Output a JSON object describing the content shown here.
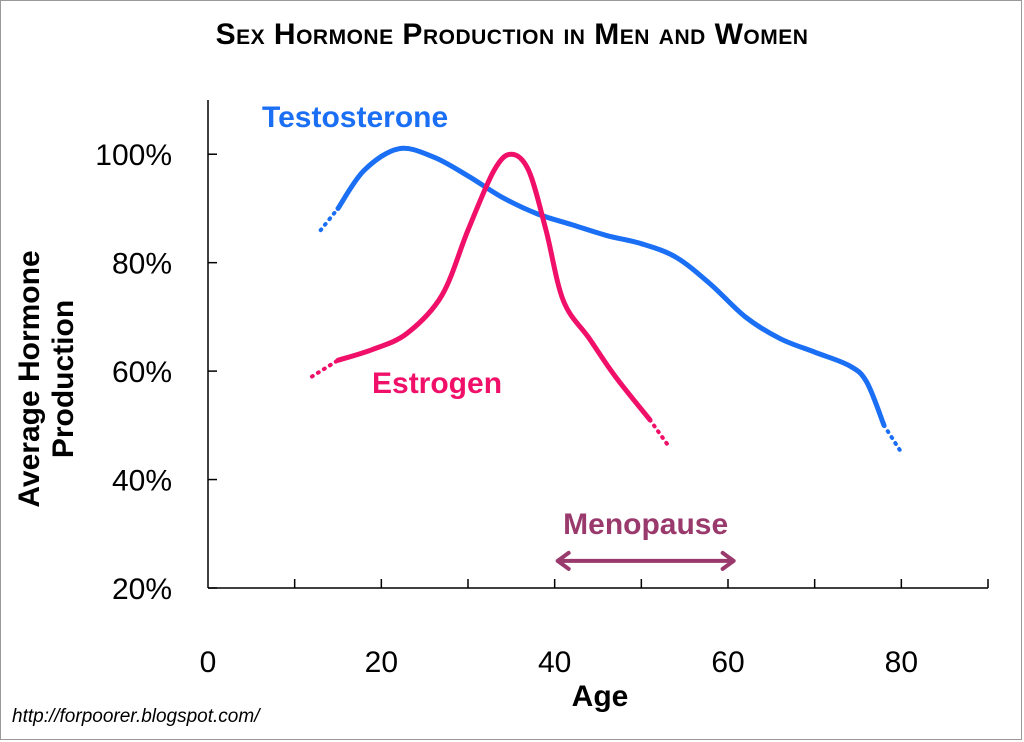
{
  "chart_data": {
    "type": "line",
    "title": "Sex Hormone Production in Men and Women",
    "xlabel": "Age",
    "ylabel": "Average Hormone Production",
    "xlim": [
      0,
      90
    ],
    "ylim": [
      20,
      110
    ],
    "xticks": [
      0,
      20,
      40,
      60,
      80
    ],
    "xtick_labels": [
      "0",
      "20",
      "40",
      "60",
      "80"
    ],
    "yticks": [
      20,
      40,
      60,
      80,
      100
    ],
    "ytick_labels": [
      "20%",
      "40%",
      "60%",
      "80%",
      "100%"
    ],
    "grid": false,
    "series": [
      {
        "name": "Testosterone",
        "color": "#1a6ff5",
        "x": [
          13,
          15,
          18,
          22,
          26,
          30,
          34,
          38,
          42,
          46,
          50,
          54,
          58,
          62,
          66,
          70,
          74,
          76,
          78,
          80
        ],
        "y": [
          86,
          90,
          97,
          101,
          99.5,
          96,
          92,
          89,
          87,
          85,
          83.5,
          81,
          76,
          70,
          66,
          63.5,
          61,
          58,
          50,
          45
        ],
        "dotted_start_x": 15,
        "dotted_end_x": 78
      },
      {
        "name": "Estrogen",
        "color": "#f0106a",
        "x": [
          12,
          15,
          19,
          23,
          27,
          30,
          33,
          35,
          37,
          39,
          41,
          44,
          47,
          51,
          53
        ],
        "y": [
          59,
          62,
          64,
          67,
          74,
          86,
          97,
          100,
          97,
          86,
          73,
          66,
          59,
          51,
          46.5
        ],
        "dotted_start_x": 15,
        "dotted_end_x": 51
      }
    ],
    "annotations": [
      {
        "text": "Menopause",
        "color": "#9a3a6c",
        "x_start": 40,
        "x_end": 61,
        "y": 25
      }
    ]
  },
  "footer": {
    "url": "http://forpoorer.blogspot.com/"
  }
}
